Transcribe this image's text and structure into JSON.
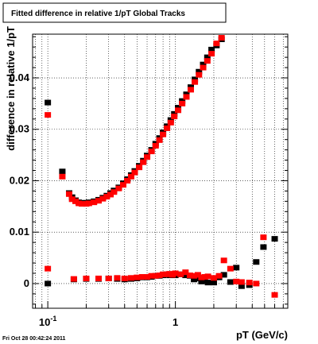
{
  "chart_data": {
    "type": "scatter",
    "title": "Fitted difference in relative 1/pT  Global Tracks",
    "xlabel": "pT (GeV/c)",
    "ylabel": "difference in relative 1/pT",
    "x_scale": "log",
    "xlim": [
      0.076,
      7.6
    ],
    "ylim": [
      -0.0048,
      0.0485
    ],
    "x_tick_labels": [
      {
        "value": 0.1,
        "base": "10",
        "exp": "-1"
      },
      {
        "value": 1,
        "base": "1",
        "exp": ""
      }
    ],
    "y_ticks": [
      {
        "value": 0,
        "label": "0"
      },
      {
        "value": 0.01,
        "label": "0.01"
      },
      {
        "value": 0.02,
        "label": "0.02"
      },
      {
        "value": 0.03,
        "label": "0.03"
      },
      {
        "value": 0.04,
        "label": "0.04"
      }
    ],
    "grid": true,
    "timestamp": "Fri Oct 28 00:42:24 2011",
    "colors": {
      "series_1": "#000000",
      "series_2": "#ff0000",
      "grid": "#000000",
      "background": "#ffffff"
    },
    "series": [
      {
        "color": "#000000",
        "marker": "square",
        "points": [
          [
            0.1,
            0.0352
          ],
          [
            0.13,
            0.0218
          ],
          [
            0.147,
            0.0176
          ],
          [
            0.155,
            0.0168
          ],
          [
            0.165,
            0.0162
          ],
          [
            0.175,
            0.0158
          ],
          [
            0.185,
            0.0157
          ],
          [
            0.2,
            0.0157
          ],
          [
            0.21,
            0.0158
          ],
          [
            0.23,
            0.016
          ],
          [
            0.25,
            0.0163
          ],
          [
            0.27,
            0.0167
          ],
          [
            0.29,
            0.0171
          ],
          [
            0.31,
            0.0176
          ],
          [
            0.33,
            0.0181
          ],
          [
            0.36,
            0.0187
          ],
          [
            0.39,
            0.0195
          ],
          [
            0.42,
            0.0203
          ],
          [
            0.45,
            0.0211
          ],
          [
            0.48,
            0.0219
          ],
          [
            0.52,
            0.0229
          ],
          [
            0.56,
            0.0239
          ],
          [
            0.6,
            0.0249
          ],
          [
            0.65,
            0.026
          ],
          [
            0.7,
            0.0272
          ],
          [
            0.75,
            0.0283
          ],
          [
            0.8,
            0.0294
          ],
          [
            0.86,
            0.0306
          ],
          [
            0.92,
            0.0318
          ],
          [
            0.98,
            0.033
          ],
          [
            1.05,
            0.0342
          ],
          [
            1.13,
            0.0355
          ],
          [
            1.22,
            0.0368
          ],
          [
            1.32,
            0.0382
          ],
          [
            1.42,
            0.0397
          ],
          [
            1.53,
            0.0412
          ],
          [
            1.65,
            0.0426
          ],
          [
            1.78,
            0.044
          ],
          [
            1.92,
            0.0455
          ],
          [
            2.1,
            0.0463
          ],
          [
            2.3,
            0.0475
          ],
          [
            0.1,
            0.0
          ],
          [
            0.16,
            0.0008
          ],
          [
            0.2,
            0.0009
          ],
          [
            0.25,
            0.0009
          ],
          [
            0.3,
            0.001
          ],
          [
            0.35,
            0.0009
          ],
          [
            0.4,
            0.0008
          ],
          [
            0.45,
            0.0009
          ],
          [
            0.5,
            0.001
          ],
          [
            0.55,
            0.0012
          ],
          [
            0.6,
            0.0012
          ],
          [
            0.65,
            0.0013
          ],
          [
            0.7,
            0.0015
          ],
          [
            0.75,
            0.0015
          ],
          [
            0.8,
            0.0016
          ],
          [
            0.85,
            0.0018
          ],
          [
            0.9,
            0.0016
          ],
          [
            0.95,
            0.0017
          ],
          [
            1.0,
            0.0016
          ],
          [
            1.1,
            0.0018
          ],
          [
            1.2,
            0.0016
          ],
          [
            1.3,
            0.0015
          ],
          [
            1.4,
            0.0008
          ],
          [
            1.5,
            0.001
          ],
          [
            1.6,
            0.0004
          ],
          [
            1.7,
            0.0006
          ],
          [
            1.8,
            0.0002
          ],
          [
            2.0,
            0.0002
          ],
          [
            2.2,
            0.0012
          ],
          [
            2.4,
            0.0017
          ],
          [
            2.7,
            0.0003
          ],
          [
            3.0,
            0.0031
          ],
          [
            3.3,
            -0.0005
          ],
          [
            3.8,
            -0.0003
          ],
          [
            4.3,
            0.0042
          ],
          [
            4.9,
            0.0071
          ],
          [
            6.0,
            0.0087
          ]
        ]
      },
      {
        "color": "#ff0000",
        "marker": "square",
        "points": [
          [
            0.1,
            0.0328
          ],
          [
            0.13,
            0.0208
          ],
          [
            0.147,
            0.0174
          ],
          [
            0.155,
            0.0164
          ],
          [
            0.165,
            0.016
          ],
          [
            0.175,
            0.0156
          ],
          [
            0.185,
            0.0155
          ],
          [
            0.2,
            0.0155
          ],
          [
            0.21,
            0.0156
          ],
          [
            0.23,
            0.0158
          ],
          [
            0.25,
            0.0161
          ],
          [
            0.27,
            0.0165
          ],
          [
            0.29,
            0.0169
          ],
          [
            0.31,
            0.0173
          ],
          [
            0.33,
            0.0178
          ],
          [
            0.36,
            0.0185
          ],
          [
            0.39,
            0.0192
          ],
          [
            0.42,
            0.02
          ],
          [
            0.45,
            0.0208
          ],
          [
            0.48,
            0.0216
          ],
          [
            0.52,
            0.0226
          ],
          [
            0.56,
            0.0236
          ],
          [
            0.6,
            0.0246
          ],
          [
            0.65,
            0.0257
          ],
          [
            0.7,
            0.0268
          ],
          [
            0.75,
            0.0279
          ],
          [
            0.8,
            0.029
          ],
          [
            0.86,
            0.0302
          ],
          [
            0.92,
            0.0313
          ],
          [
            0.98,
            0.0325
          ],
          [
            1.05,
            0.0337
          ],
          [
            1.13,
            0.035
          ],
          [
            1.22,
            0.0363
          ],
          [
            1.32,
            0.0377
          ],
          [
            1.42,
            0.0392
          ],
          [
            1.53,
            0.0406
          ],
          [
            1.65,
            0.042
          ],
          [
            1.78,
            0.0433
          ],
          [
            1.92,
            0.0447
          ],
          [
            2.1,
            0.0467
          ],
          [
            2.3,
            0.0478
          ],
          [
            0.1,
            0.0029
          ],
          [
            0.16,
            0.0009
          ],
          [
            0.2,
            0.001
          ],
          [
            0.25,
            0.001
          ],
          [
            0.3,
            0.001
          ],
          [
            0.35,
            0.0011
          ],
          [
            0.4,
            0.001
          ],
          [
            0.45,
            0.0011
          ],
          [
            0.5,
            0.0012
          ],
          [
            0.55,
            0.0013
          ],
          [
            0.6,
            0.0013
          ],
          [
            0.65,
            0.0015
          ],
          [
            0.7,
            0.0015
          ],
          [
            0.75,
            0.0016
          ],
          [
            0.8,
            0.0018
          ],
          [
            0.85,
            0.0018
          ],
          [
            0.9,
            0.0019
          ],
          [
            0.95,
            0.0017
          ],
          [
            1.0,
            0.002
          ],
          [
            1.1,
            0.0018
          ],
          [
            1.2,
            0.0022
          ],
          [
            1.3,
            0.0016
          ],
          [
            1.4,
            0.0015
          ],
          [
            1.5,
            0.0017
          ],
          [
            1.6,
            0.0012
          ],
          [
            1.7,
            0.0013
          ],
          [
            1.8,
            0.0014
          ],
          [
            2.0,
            0.0011
          ],
          [
            2.2,
            0.0015
          ],
          [
            2.4,
            0.0045
          ],
          [
            2.7,
            0.0029
          ],
          [
            3.0,
            0.0004
          ],
          [
            3.3,
            0.0003
          ],
          [
            3.8,
            0.0002
          ],
          [
            4.3,
            0.0
          ],
          [
            4.9,
            0.009
          ],
          [
            6.0,
            -0.0022
          ]
        ]
      }
    ]
  }
}
